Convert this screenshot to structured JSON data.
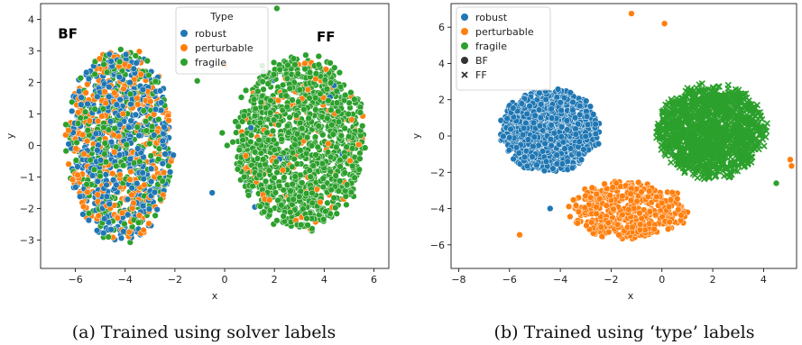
{
  "colors": {
    "robust": "#1f77b4",
    "perturbable": "#ff7f0e",
    "fragile": "#2ca02c"
  },
  "chart_data": [
    {
      "type": "scatter",
      "caption": "(a) Trained using solver labels",
      "xlabel": "x",
      "ylabel": "y",
      "xlim": [
        -7.4,
        6.6
      ],
      "ylim": [
        -3.9,
        4.5
      ],
      "xticks": [
        -6,
        -4,
        -2,
        0,
        2,
        4,
        6
      ],
      "yticks": [
        -3,
        -2,
        -1,
        0,
        1,
        2,
        3,
        4
      ],
      "grid": false,
      "legend": {
        "placement": "top-center",
        "title": "Type",
        "entries": [
          {
            "label": "robust",
            "color": "#1f77b4",
            "marker": "circle"
          },
          {
            "label": "perturbable",
            "color": "#ff7f0e",
            "marker": "circle"
          },
          {
            "label": "fragile",
            "color": "#2ca02c",
            "marker": "circle"
          }
        ]
      },
      "annotations": [
        {
          "text": "BF",
          "x": -6.7,
          "y": 3.4
        },
        {
          "text": "FF",
          "x": 3.7,
          "y": 3.3
        }
      ],
      "clusters": [
        {
          "name": "BF",
          "center": [
            -4.2,
            0.0
          ],
          "radius": [
            2.3,
            3.2
          ],
          "counts": {
            "robust": 520,
            "perturbable": 360,
            "fragile": 340
          },
          "marker": "circle"
        },
        {
          "name": "FF",
          "center": [
            3.0,
            0.1
          ],
          "radius": [
            2.75,
            2.9
          ],
          "counts": {
            "fragile": 1200,
            "perturbable": 110,
            "robust": 14
          },
          "marker": "circle"
        }
      ],
      "outliers": [
        {
          "x": 2.1,
          "y": 4.35,
          "type": "fragile"
        },
        {
          "x": -1.1,
          "y": 2.05,
          "type": "fragile"
        },
        {
          "x": -0.5,
          "y": -1.5,
          "type": "robust"
        },
        {
          "x": 0.1,
          "y": 0.0,
          "type": "fragile"
        },
        {
          "x": 0.0,
          "y": 2.55,
          "type": "perturbable"
        },
        {
          "x": -0.1,
          "y": 0.4,
          "type": "fragile"
        }
      ]
    },
    {
      "type": "scatter",
      "caption": "(b) Trained using ‘type’ labels",
      "xlabel": "x",
      "ylabel": "y",
      "xlim": [
        -8.3,
        5.3
      ],
      "ylim": [
        -7.3,
        7.3
      ],
      "xticks": [
        -8,
        -6,
        -4,
        -2,
        0,
        2,
        4
      ],
      "yticks": [
        -6,
        -4,
        -2,
        0,
        2,
        4,
        6
      ],
      "grid": false,
      "legend": {
        "placement": "top-left",
        "title": "",
        "entries": [
          {
            "label": "robust",
            "color": "#1f77b4",
            "marker": "circle"
          },
          {
            "label": "perturbable",
            "color": "#ff7f0e",
            "marker": "circle"
          },
          {
            "label": "fragile",
            "color": "#2ca02c",
            "marker": "circle"
          },
          {
            "label": "BF",
            "color": "#333333",
            "marker": "circle"
          },
          {
            "label": "FF",
            "color": "#333333",
            "marker": "x"
          }
        ]
      },
      "annotations": [],
      "clusters": [
        {
          "name": "robust",
          "center": [
            -4.4,
            0.3
          ],
          "radius": [
            2.05,
            2.4
          ],
          "counts": {
            "robust": 1100
          },
          "marker": "circle"
        },
        {
          "name": "fragile",
          "center": [
            1.95,
            0.25
          ],
          "radius": [
            2.25,
            2.7
          ],
          "counts": {
            "fragile": 1350
          },
          "marker": "x"
        },
        {
          "name": "perturbable",
          "center": [
            -1.35,
            -4.1
          ],
          "radius": [
            2.5,
            1.7
          ],
          "counts": {
            "perturbable": 450
          },
          "marker": "circle"
        }
      ],
      "outliers": [
        {
          "x": -1.2,
          "y": 6.75,
          "type": "perturbable"
        },
        {
          "x": 0.1,
          "y": 6.2,
          "type": "perturbable"
        },
        {
          "x": 5.05,
          "y": -1.3,
          "type": "perturbable"
        },
        {
          "x": 5.1,
          "y": -1.65,
          "type": "perturbable"
        },
        {
          "x": -5.6,
          "y": -5.45,
          "type": "perturbable"
        },
        {
          "x": -4.4,
          "y": -4.0,
          "type": "robust"
        },
        {
          "x": 4.5,
          "y": -2.6,
          "type": "fragile"
        }
      ]
    }
  ]
}
